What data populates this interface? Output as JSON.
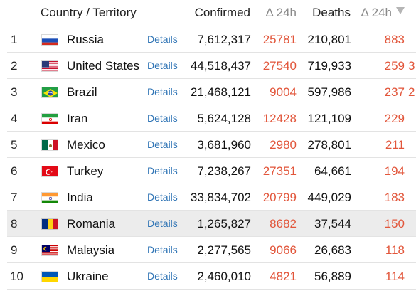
{
  "header": {
    "country": "Country / Territory",
    "confirmed": "Confirmed",
    "delta_confirmed": "Δ 24h",
    "deaths": "Deaths",
    "delta_deaths": "Δ 24h"
  },
  "rows": [
    {
      "rank": "1",
      "country": "Russia",
      "details": "Details",
      "confirmed": "7,612,317",
      "delta_confirmed": "25781",
      "deaths": "210,801",
      "delta_deaths": "883",
      "clip": "",
      "flag": "russia-flag-icon"
    },
    {
      "rank": "2",
      "country": "United States",
      "details": "Details",
      "confirmed": "44,518,437",
      "delta_confirmed": "27540",
      "deaths": "719,933",
      "delta_deaths": "259",
      "clip": "3",
      "flag": "us-flag-icon"
    },
    {
      "rank": "3",
      "country": "Brazil",
      "details": "Details",
      "confirmed": "21,468,121",
      "delta_confirmed": "9004",
      "deaths": "597,986",
      "delta_deaths": "237",
      "clip": "2",
      "flag": "brazil-flag-icon"
    },
    {
      "rank": "4",
      "country": "Iran",
      "details": "Details",
      "confirmed": "5,624,128",
      "delta_confirmed": "12428",
      "deaths": "121,109",
      "delta_deaths": "229",
      "clip": "",
      "flag": "iran-flag-icon"
    },
    {
      "rank": "5",
      "country": "Mexico",
      "details": "Details",
      "confirmed": "3,681,960",
      "delta_confirmed": "2980",
      "deaths": "278,801",
      "delta_deaths": "211",
      "clip": "",
      "flag": "mexico-flag-icon"
    },
    {
      "rank": "6",
      "country": "Turkey",
      "details": "Details",
      "confirmed": "7,238,267",
      "delta_confirmed": "27351",
      "deaths": "64,661",
      "delta_deaths": "194",
      "clip": "",
      "flag": "turkey-flag-icon"
    },
    {
      "rank": "7",
      "country": "India",
      "details": "Details",
      "confirmed": "33,834,702",
      "delta_confirmed": "20799",
      "deaths": "449,029",
      "delta_deaths": "183",
      "clip": "",
      "flag": "india-flag-icon"
    },
    {
      "rank": "8",
      "country": "Romania",
      "details": "Details",
      "confirmed": "1,265,827",
      "delta_confirmed": "8682",
      "deaths": "37,544",
      "delta_deaths": "150",
      "clip": "",
      "flag": "romania-flag-icon"
    },
    {
      "rank": "9",
      "country": "Malaysia",
      "details": "Details",
      "confirmed": "2,277,565",
      "delta_confirmed": "9066",
      "deaths": "26,683",
      "delta_deaths": "118",
      "clip": "",
      "flag": "malaysia-flag-icon"
    },
    {
      "rank": "10",
      "country": "Ukraine",
      "details": "Details",
      "confirmed": "2,460,010",
      "delta_confirmed": "4821",
      "deaths": "56,889",
      "delta_deaths": "114",
      "clip": "",
      "flag": "ukraine-flag-icon"
    }
  ],
  "colors": {
    "delta": "#e2563b",
    "link": "#2f74b5",
    "highlight_row": "#ececec",
    "sort_arrow": "#b5b5b5"
  }
}
